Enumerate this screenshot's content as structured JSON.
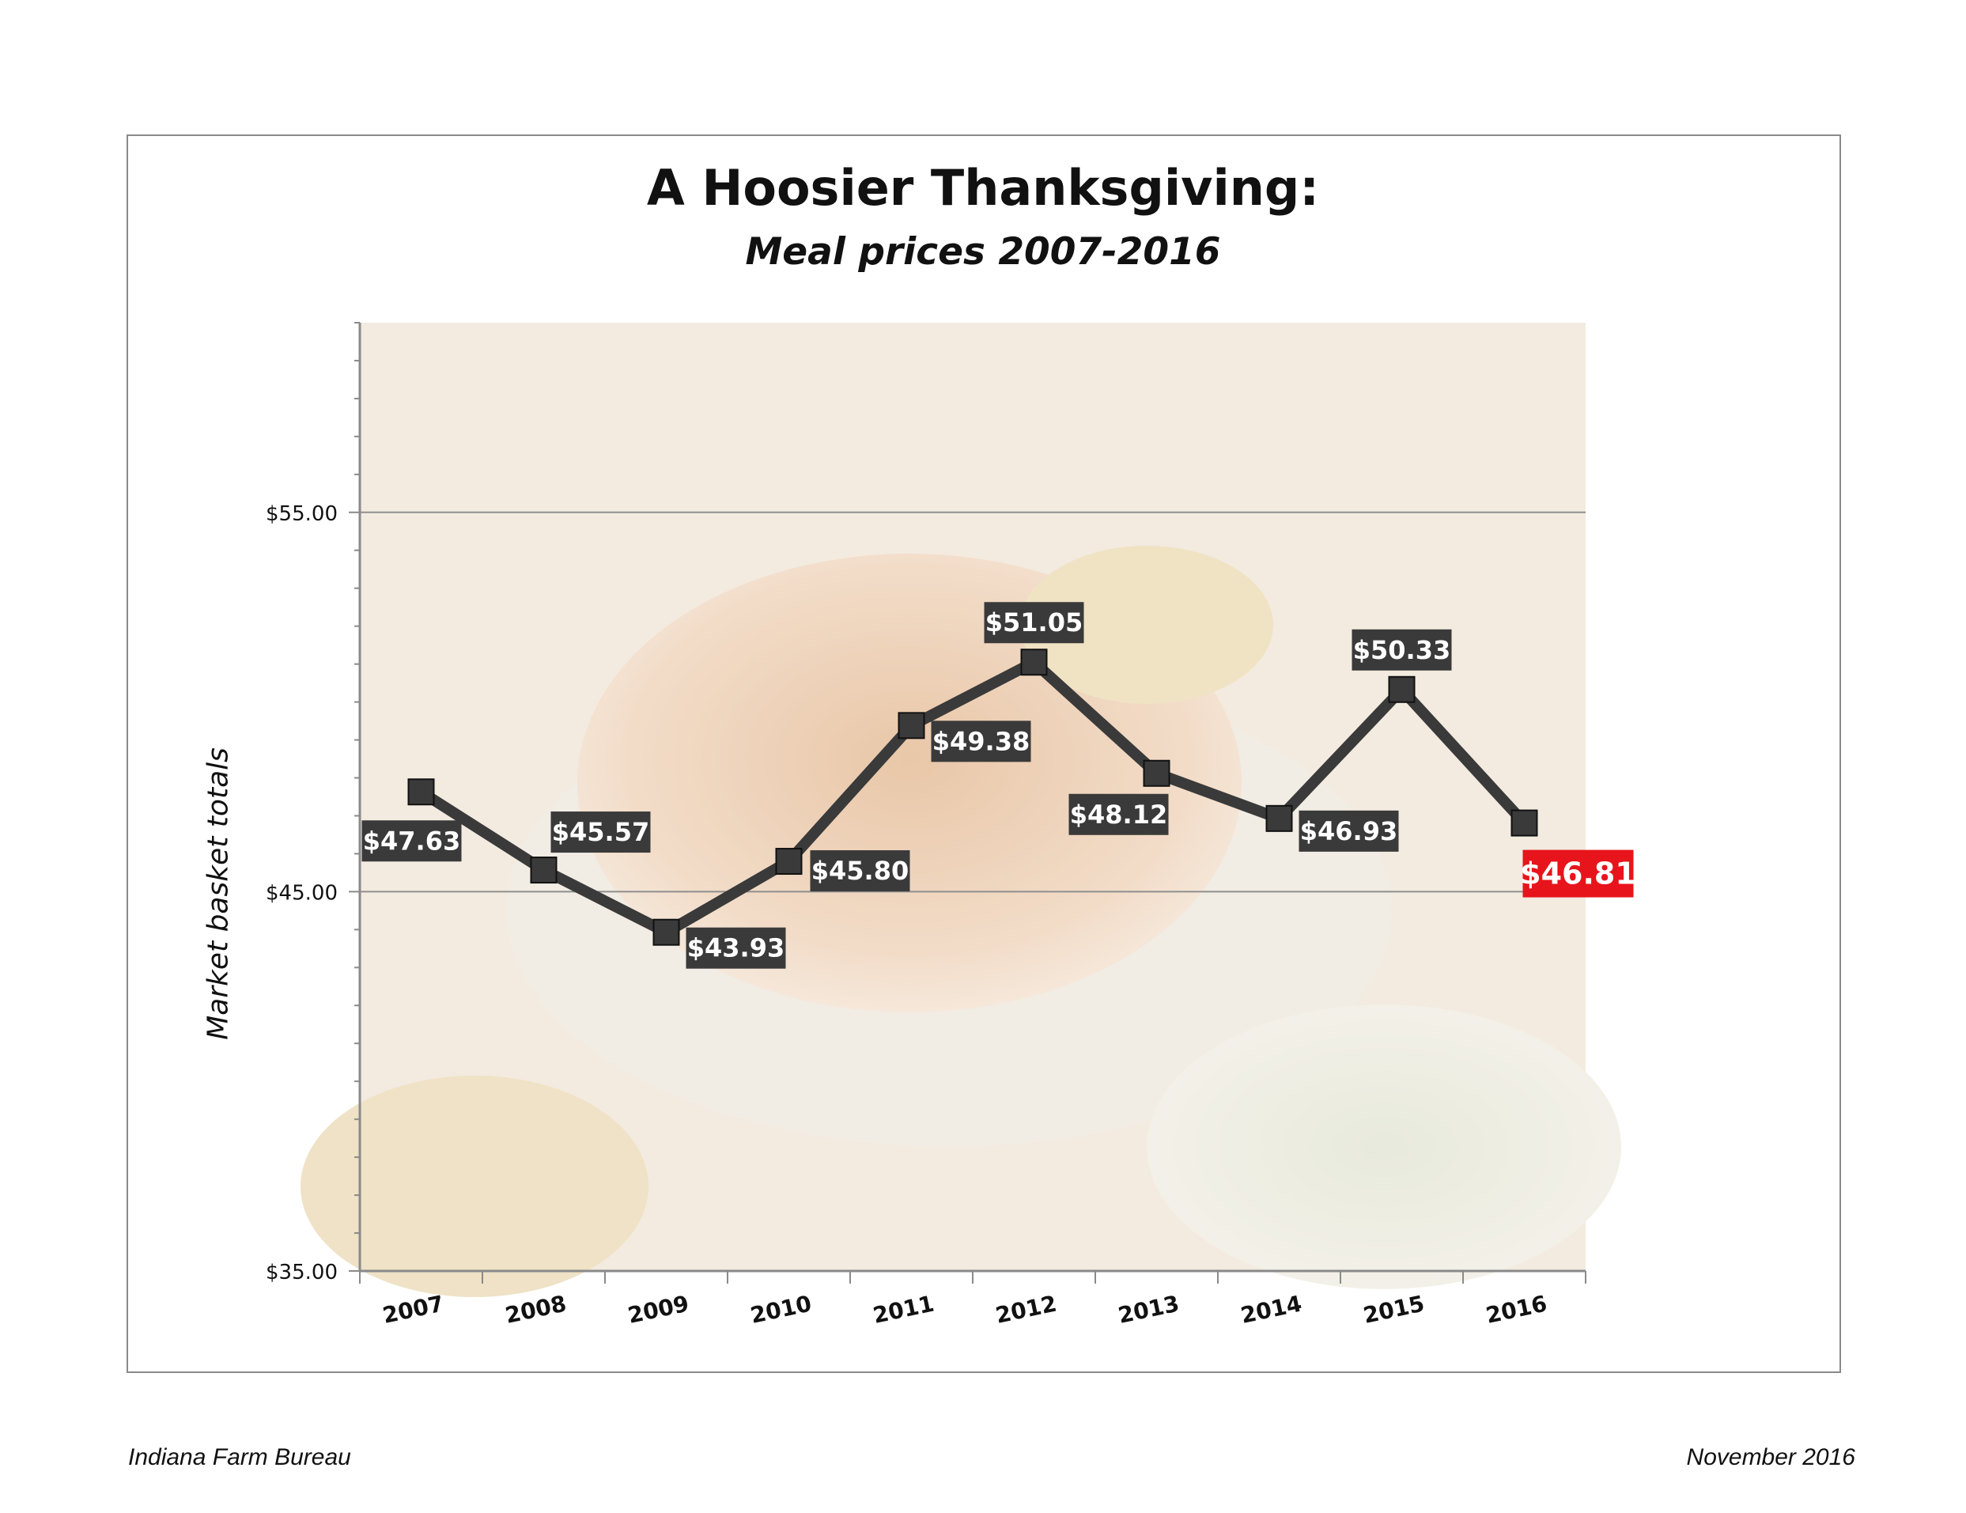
{
  "title": "A Hoosier Thanksgiving:",
  "subtitle": "Meal prices 2007-2016",
  "footer": {
    "source": "Indiana Farm Bureau",
    "date": "November 2016"
  },
  "colors": {
    "line": "#3a3a3a",
    "label_bg": "#3a3a3a",
    "highlight": "#e8141b",
    "grid": "#8f8f8f",
    "photo_tint": "#f3ebe0"
  },
  "chart_data": {
    "type": "line",
    "title": "A Hoosier Thanksgiving:",
    "subtitle": "Meal prices 2007-2016",
    "xlabel": "",
    "ylabel": "Market basket totals",
    "ylim": [
      35,
      60
    ],
    "yticks": [
      35,
      45,
      55
    ],
    "ytick_labels": [
      "$35.00",
      "$45.00",
      "$55.00"
    ],
    "grid": "horizontal major lines",
    "categories": [
      "2007",
      "2008",
      "2009",
      "2010",
      "2011",
      "2012",
      "2013",
      "2014",
      "2015",
      "2016"
    ],
    "series": [
      {
        "values": [
          47.63,
          45.57,
          43.93,
          45.8,
          49.38,
          51.05,
          48.12,
          46.93,
          50.33,
          46.81
        ],
        "data_labels": [
          "$47.63",
          "$45.57",
          "$43.93",
          "$45.80",
          "$49.38",
          "$51.05",
          "$48.12",
          "$46.93",
          "$50.33",
          "$46.81"
        ],
        "label_position": [
          "below-left",
          "above-right",
          "below-right",
          "right",
          "below-right",
          "above",
          "below",
          "right-below",
          "above",
          "below-right"
        ],
        "highlight_last": true
      }
    ],
    "background": "faded Thanksgiving turkey photo"
  }
}
